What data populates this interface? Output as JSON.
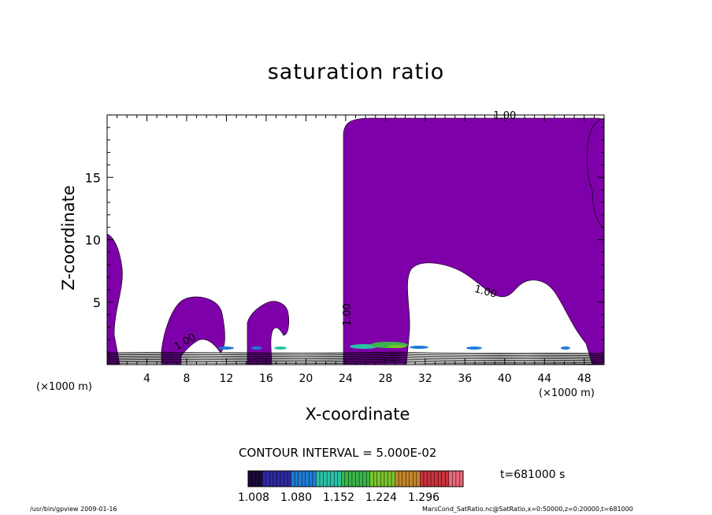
{
  "chart_data": {
    "type": "contour",
    "title": "saturation ratio",
    "xlabel": "X-coordinate",
    "ylabel": "Z-coordinate",
    "x_unit": "(×1000 m)",
    "xlim": [
      0,
      50
    ],
    "ylim": [
      0,
      20
    ],
    "x_ticks": [
      4,
      8,
      12,
      16,
      20,
      24,
      28,
      32,
      36,
      40,
      44,
      48
    ],
    "y_ticks": [
      5,
      10,
      15
    ],
    "contour_labels": [
      {
        "text": "1.00",
        "x": 40,
        "y": 19.7
      },
      {
        "text": "1.00",
        "x": 38,
        "y": 5.6
      },
      {
        "text": "1.00",
        "x": 24.5,
        "y": 4.0
      },
      {
        "text": "1.00",
        "x": 8,
        "y": 1.6
      }
    ],
    "filled_region_color": "#7e00a8",
    "colorbar_colors": [
      "#1a0a3a",
      "#2f2a9e",
      "#1e7cd6",
      "#2bc3a8",
      "#3ab54a",
      "#7ac32c",
      "#c3862c",
      "#c8323c",
      "#e86a7a"
    ],
    "colorbar_ticks": [
      "1.008",
      "1.080",
      "1.152",
      "1.224",
      "1.296"
    ]
  },
  "contour_interval_text": "CONTOUR INTERVAL = 5.000E-02",
  "time_text": "t=681000 s",
  "footer_left": "/usr/bin/gpview   2009-01-16",
  "footer_right": "MarsCond_SatRatio.nc@SatRatio,x=0:50000,z=0:20000,t=681000"
}
